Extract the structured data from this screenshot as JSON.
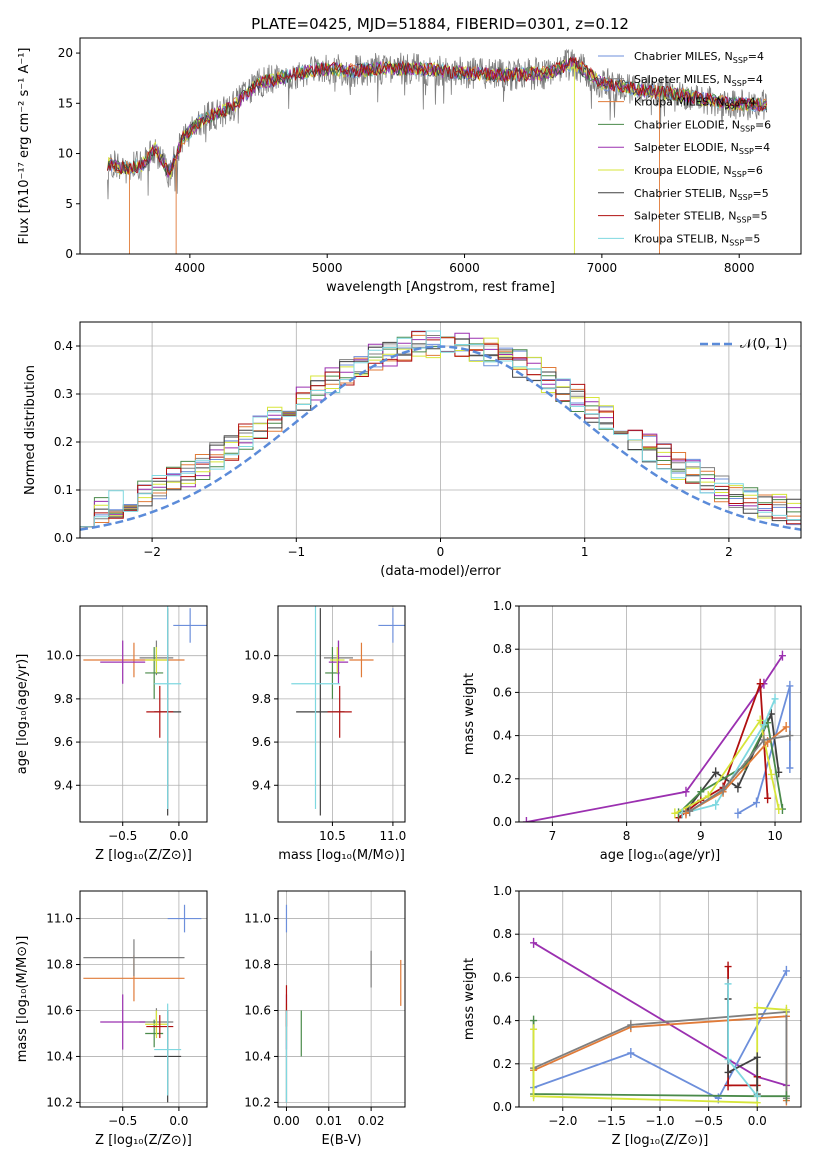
{
  "title": "PLATE=0425, MJD=51884, FIBERID=0301, z=0.12",
  "colors": {
    "Chabrier MILES": "#6d8fdb",
    "Salpeter MILES": "#7f7f7f",
    "Kroupa MILES": "#e07b39",
    "Chabrier ELODIE": "#4a8a4a",
    "Salpeter ELODIE": "#9b30b0",
    "Kroupa ELODIE": "#d7e53a",
    "Chabrier STELIB": "#404040",
    "Salpeter STELIB": "#b01010",
    "Kroupa STELIB": "#7fd8e0",
    "normal": "#5b8bd9"
  },
  "legend": [
    {
      "name": "Chabrier MILES",
      "nssp": "4"
    },
    {
      "name": "Salpeter MILES",
      "nssp": "4"
    },
    {
      "name": "Kroupa MILES",
      "nssp": "4"
    },
    {
      "name": "Chabrier ELODIE",
      "nssp": "6"
    },
    {
      "name": "Salpeter ELODIE",
      "nssp": "4"
    },
    {
      "name": "Kroupa ELODIE",
      "nssp": "6"
    },
    {
      "name": "Chabrier STELIB",
      "nssp": "5"
    },
    {
      "name": "Salpeter STELIB",
      "nssp": "5"
    },
    {
      "name": "Kroupa STELIB",
      "nssp": "5"
    }
  ],
  "chart_data": [
    {
      "id": "spectrum",
      "type": "line",
      "xlabel": "wavelength [Angstrom, rest frame]",
      "ylabel": "Flux [fλ10⁻¹⁷ erg cm⁻² s⁻¹ A⁻¹]",
      "xlim": [
        3200,
        8450
      ],
      "ylim": [
        0,
        21.5
      ],
      "xticks": [
        4000,
        5000,
        6000,
        7000,
        8000
      ],
      "yticks": [
        0,
        5,
        10,
        15,
        20
      ],
      "continuum": [
        [
          3400,
          9.0
        ],
        [
          3500,
          8.5
        ],
        [
          3650,
          8.8
        ],
        [
          3750,
          10.5
        ],
        [
          3850,
          8.0
        ],
        [
          3950,
          11.5
        ],
        [
          4100,
          13.5
        ],
        [
          4300,
          14.5
        ],
        [
          4500,
          17.0
        ],
        [
          4800,
          18.0
        ],
        [
          5000,
          18.5
        ],
        [
          5200,
          18.2
        ],
        [
          5400,
          18.5
        ],
        [
          5700,
          18.4
        ],
        [
          6000,
          18.0
        ],
        [
          6300,
          17.8
        ],
        [
          6600,
          18.0
        ],
        [
          6800,
          19.0
        ],
        [
          7000,
          17.0
        ],
        [
          7300,
          16.3
        ],
        [
          7600,
          15.8
        ],
        [
          7900,
          15.0
        ],
        [
          8200,
          14.8
        ]
      ],
      "model_edges": [
        [
          3470,
          3560
        ],
        [
          3880,
          3900
        ],
        [
          6750,
          6800
        ],
        [
          7360,
          7420
        ]
      ]
    },
    {
      "id": "residuals",
      "type": "step",
      "xlabel": "(data-model)/error",
      "ylabel": "Normed distribution",
      "xlim": [
        -2.5,
        2.5
      ],
      "ylim": [
        0,
        0.45
      ],
      "xticks": [
        -2,
        -1,
        0,
        1,
        2
      ],
      "yticks": [
        0.0,
        0.1,
        0.2,
        0.3,
        0.4
      ],
      "reference": "𝒩(0, 1)",
      "bin_width": 0.1
    },
    {
      "id": "age-vs-Z",
      "type": "scatter",
      "xlabel": "Z [log₁₀(Z/Z⊙)]",
      "ylabel": "age  [log₁₀(age/yr)]",
      "xlim": [
        -0.88,
        0.25
      ],
      "ylim": [
        9.23,
        10.23
      ],
      "xticks": [
        -0.5,
        0.0
      ],
      "yticks": [
        9.4,
        9.6,
        9.8,
        10.0
      ],
      "points": [
        {
          "s": "Chabrier MILES",
          "x": 0.1,
          "xe": 0.15,
          "y": 10.14,
          "ye": 0.08
        },
        {
          "s": "Salpeter MILES",
          "x": -0.2,
          "xe": 0.15,
          "y": 9.99,
          "ye": 0.08
        },
        {
          "s": "Kroupa MILES",
          "x": -0.4,
          "xe": 0.45,
          "y": 9.98,
          "ye": 0.08
        },
        {
          "s": "Chabrier ELODIE",
          "x": -0.22,
          "xe": 0.08,
          "y": 9.92,
          "ye": 0.12
        },
        {
          "s": "Salpeter ELODIE",
          "x": -0.5,
          "xe": 0.2,
          "y": 9.97,
          "ye": 0.1
        },
        {
          "s": "Kroupa ELODIE",
          "x": -0.2,
          "xe": 0.1,
          "y": 9.98,
          "ye": 0.06
        },
        {
          "s": "Chabrier STELIB",
          "x": -0.1,
          "xe": 0.12,
          "y": 9.74,
          "ye": 0.48
        },
        {
          "s": "Salpeter STELIB",
          "x": -0.17,
          "xe": 0.12,
          "y": 9.74,
          "ye": 0.12
        },
        {
          "s": "Kroupa STELIB",
          "x": -0.1,
          "xe": 0.12,
          "y": 9.87,
          "ye": 0.58
        }
      ]
    },
    {
      "id": "age-vs-mass",
      "type": "scatter",
      "xlabel": "mass [log₁₀(M/M⊙)]",
      "ylabel": "",
      "xlim": [
        10.05,
        11.1
      ],
      "ylim": [
        9.23,
        10.23
      ],
      "xticks": [
        10.5,
        11.0
      ],
      "yticks": [
        9.4,
        9.6,
        9.8,
        10.0
      ],
      "points": [
        {
          "s": "Chabrier MILES",
          "x": 11.0,
          "xe": 0.12,
          "y": 10.14,
          "ye": 0.08
        },
        {
          "s": "Salpeter MILES",
          "x": 10.55,
          "xe": 0.12,
          "y": 9.99,
          "ye": 0.08
        },
        {
          "s": "Kroupa MILES",
          "x": 10.74,
          "xe": 0.1,
          "y": 9.98,
          "ye": 0.08
        },
        {
          "s": "Chabrier ELODIE",
          "x": 10.5,
          "xe": 0.06,
          "y": 9.92,
          "ye": 0.12
        },
        {
          "s": "Salpeter ELODIE",
          "x": 10.55,
          "xe": 0.08,
          "y": 9.97,
          "ye": 0.1
        },
        {
          "s": "Kroupa ELODIE",
          "x": 10.54,
          "xe": 0.06,
          "y": 9.98,
          "ye": 0.06
        },
        {
          "s": "Chabrier STELIB",
          "x": 10.4,
          "xe": 0.2,
          "y": 9.74,
          "ye": 0.48
        },
        {
          "s": "Salpeter STELIB",
          "x": 10.56,
          "xe": 0.1,
          "y": 9.74,
          "ye": 0.12
        },
        {
          "s": "Kroupa STELIB",
          "x": 10.36,
          "xe": 0.2,
          "y": 9.87,
          "ye": 0.58
        }
      ]
    },
    {
      "id": "weight-vs-age",
      "type": "line",
      "xlabel": "age  [log₁₀(age/yr)]",
      "ylabel": "mass weight",
      "xlim": [
        6.55,
        10.35
      ],
      "ylim": [
        0,
        1.0
      ],
      "xticks": [
        7,
        8,
        9,
        10
      ],
      "yticks": [
        0.0,
        0.2,
        0.4,
        0.6,
        0.8,
        1.0
      ],
      "series": [
        {
          "s": "Salpeter ELODIE",
          "x": [
            6.65,
            8.8,
            9.85,
            10.1
          ],
          "y": [
            0.0,
            0.14,
            0.64,
            0.77
          ]
        },
        {
          "s": "Chabrier MILES",
          "x": [
            9.5,
            9.75,
            10.2,
            10.2
          ],
          "y": [
            0.04,
            0.09,
            0.63,
            0.25
          ]
        },
        {
          "s": "Salpeter STELIB",
          "x": [
            8.7,
            9.0,
            9.3,
            9.8,
            9.9
          ],
          "y": [
            0.02,
            0.1,
            0.16,
            0.64,
            0.11
          ]
        },
        {
          "s": "Chabrier STELIB",
          "x": [
            8.8,
            9.2,
            9.5,
            9.95,
            10.05
          ],
          "y": [
            0.05,
            0.23,
            0.16,
            0.5,
            0.23
          ]
        },
        {
          "s": "Chabrier ELODIE",
          "x": [
            8.7,
            9.0,
            9.6,
            9.9,
            10.1
          ],
          "y": [
            0.04,
            0.14,
            0.26,
            0.46,
            0.06
          ]
        },
        {
          "s": "Kroupa ELODIE",
          "x": [
            8.65,
            9.1,
            9.8,
            9.95,
            10.05
          ],
          "y": [
            0.04,
            0.12,
            0.47,
            0.22,
            0.06
          ]
        },
        {
          "s": "Kroupa STELIB",
          "x": [
            8.75,
            9.2,
            9.85,
            10.0
          ],
          "y": [
            0.04,
            0.08,
            0.45,
            0.57
          ]
        },
        {
          "s": "Kroupa MILES",
          "x": [
            8.8,
            9.3,
            9.9,
            10.15
          ],
          "y": [
            0.04,
            0.14,
            0.37,
            0.44
          ]
        },
        {
          "s": "Salpeter MILES",
          "x": [
            8.85,
            9.3,
            9.85,
            10.2
          ],
          "y": [
            0.05,
            0.15,
            0.38,
            0.4
          ]
        }
      ]
    },
    {
      "id": "mass-vs-Z",
      "type": "scatter",
      "xlabel": "Z [log₁₀(Z/Z⊙)]",
      "ylabel": "mass [log₁₀(M/M⊙)]",
      "xlim": [
        -0.88,
        0.25
      ],
      "ylim": [
        10.18,
        11.12
      ],
      "xticks": [
        -0.5,
        0.0
      ],
      "yticks": [
        10.2,
        10.4,
        10.6,
        10.8,
        11.0
      ],
      "points": [
        {
          "s": "Chabrier MILES",
          "x": 0.05,
          "xe": 0.15,
          "y": 11.0,
          "ye": 0.06
        },
        {
          "s": "Salpeter MILES",
          "x": -0.2,
          "xe": 0.15,
          "y": 10.55,
          "ye": 0.06
        },
        {
          "s": "Kroupa MILES",
          "x": -0.4,
          "xe": 0.45,
          "y": 10.74,
          "ye": 0.1
        },
        {
          "s": "Chabrier ELODIE",
          "x": -0.22,
          "xe": 0.08,
          "y": 10.5,
          "ye": 0.06
        },
        {
          "s": "Salpeter ELODIE",
          "x": -0.5,
          "xe": 0.2,
          "y": 10.55,
          "ye": 0.12
        },
        {
          "s": "Kroupa ELODIE",
          "x": -0.2,
          "xe": 0.1,
          "y": 10.54,
          "ye": 0.06
        },
        {
          "s": "Chabrier STELIB",
          "x": -0.1,
          "xe": 0.12,
          "y": 10.4,
          "ye": 0.2
        },
        {
          "s": "Salpeter STELIB",
          "x": -0.17,
          "xe": 0.12,
          "y": 10.53,
          "ye": 0.05
        },
        {
          "s": "Kroupa STELIB",
          "x": -0.1,
          "xe": 0.12,
          "y": 10.43,
          "ye": 0.2
        },
        {
          "s": "Salpeter MILES",
          "x": -0.4,
          "xe": 0.45,
          "y": 10.83,
          "ye": 0.08
        }
      ]
    },
    {
      "id": "mass-vs-ebv",
      "type": "scatter",
      "xlabel": "E(B-V)",
      "ylabel": "",
      "xlim": [
        -0.002,
        0.028
      ],
      "ylim": [
        10.18,
        11.12
      ],
      "xticks": [
        0.0,
        0.01,
        0.02
      ],
      "yticks": [
        10.2,
        10.4,
        10.6,
        10.8,
        11.0
      ],
      "points": [
        {
          "s": "Chabrier MILES",
          "x": 0.0,
          "y": 11.0,
          "ye": 0.06
        },
        {
          "s": "Salpeter MILES",
          "x": 0.02,
          "y": 10.78,
          "ye": 0.08
        },
        {
          "s": "Kroupa MILES",
          "x": 0.027,
          "y": 10.72,
          "ye": 0.1
        },
        {
          "s": "Chabrier ELODIE",
          "x": 0.0035,
          "y": 10.5,
          "ye": 0.1
        },
        {
          "s": "Salpeter ELODIE",
          "x": 0.0,
          "y": 10.55,
          "ye": 0.12
        },
        {
          "s": "Kroupa ELODIE",
          "x": 0.0,
          "y": 10.55,
          "ye": 0.08
        },
        {
          "s": "Chabrier STELIB",
          "x": 0.0,
          "y": 10.4,
          "ye": 0.2
        },
        {
          "s": "Salpeter STELIB",
          "x": 0.0,
          "y": 10.62,
          "ye": 0.09
        },
        {
          "s": "Kroupa STELIB",
          "x": 0.0,
          "y": 10.4,
          "ye": 0.2
        }
      ]
    },
    {
      "id": "weight-vs-Z",
      "type": "line",
      "xlabel": "Z [log₁₀(Z/Z⊙)]",
      "ylabel": "mass weight",
      "xlim": [
        -2.45,
        0.45
      ],
      "ylim": [
        0,
        1.0
      ],
      "xticks": [
        -2.0,
        -1.5,
        -1.0,
        -0.5,
        0.0
      ],
      "yticks": [
        0.0,
        0.2,
        0.4,
        0.6,
        0.8,
        1.0
      ],
      "series": [
        {
          "s": "Salpeter ELODIE",
          "x": [
            -2.3,
            0.0,
            0.3
          ],
          "y": [
            0.76,
            0.14,
            0.1
          ]
        },
        {
          "s": "Chabrier MILES",
          "x": [
            -2.3,
            -1.3,
            -0.4,
            0.3
          ],
          "y": [
            0.09,
            0.25,
            0.04,
            0.63
          ]
        },
        {
          "s": "Kroupa MILES",
          "x": [
            -2.3,
            -1.3,
            0.3,
            0.3
          ],
          "y": [
            0.17,
            0.37,
            0.42,
            0.03
          ]
        },
        {
          "s": "Salpeter MILES",
          "x": [
            -2.3,
            -1.3,
            0.3,
            0.3
          ],
          "y": [
            0.18,
            0.38,
            0.44,
            0.04
          ]
        },
        {
          "s": "Chabrier ELODIE",
          "x": [
            -2.3,
            -2.3,
            0.0,
            0.3
          ],
          "y": [
            0.4,
            0.06,
            0.05,
            0.05
          ]
        },
        {
          "s": "Kroupa ELODIE",
          "x": [
            -2.3,
            -2.3,
            0.0,
            0.0,
            0.3
          ],
          "y": [
            0.36,
            0.05,
            0.02,
            0.46,
            0.45
          ]
        },
        {
          "s": "Salpeter STELIB",
          "x": [
            -0.3,
            -0.3,
            0.0,
            0.0
          ],
          "y": [
            0.65,
            0.1,
            0.1,
            0.14
          ]
        },
        {
          "s": "Chabrier STELIB",
          "x": [
            -0.3,
            -0.3,
            0.0,
            0.0
          ],
          "y": [
            0.5,
            0.16,
            0.23,
            0.06
          ]
        },
        {
          "s": "Kroupa STELIB",
          "x": [
            -0.3,
            -0.3,
            0.0
          ],
          "y": [
            0.57,
            0.22,
            0.05
          ]
        }
      ]
    }
  ]
}
